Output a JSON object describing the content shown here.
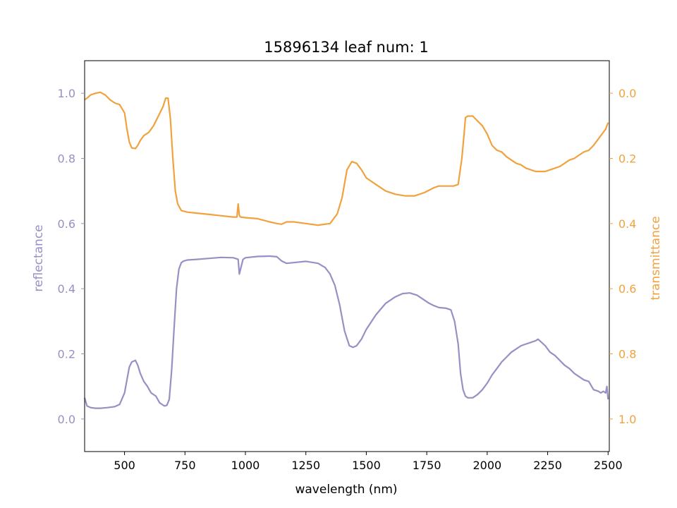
{
  "chart_data": {
    "type": "line",
    "title": "15896134 leaf num: 1",
    "xlabel": "wavelength (nm)",
    "ylabel_left": "reflectance",
    "ylabel_right": "transmittance",
    "xlim": [
      335,
      2505
    ],
    "ylim_left": [
      -0.1,
      1.1
    ],
    "ylim_right": [
      1.1,
      -0.1
    ],
    "right_axis_inverted": true,
    "grid": false,
    "x_ticks": [
      500,
      750,
      1000,
      1250,
      1500,
      1750,
      2000,
      2250,
      2500
    ],
    "y_left_ticks": [
      0.0,
      0.2,
      0.4,
      0.6,
      0.8,
      1.0
    ],
    "y_right_ticks": [
      0.0,
      0.2,
      0.4,
      0.6,
      0.8,
      1.0
    ],
    "colors": {
      "reflectance": "#9890c4",
      "transmittance": "#f0a23e"
    },
    "series": [
      {
        "name": "reflectance",
        "axis": "left",
        "x": [
          335,
          345,
          360,
          380,
          400,
          430,
          460,
          480,
          500,
          510,
          520,
          530,
          545,
          555,
          565,
          580,
          595,
          610,
          630,
          645,
          655,
          665,
          675,
          685,
          695,
          705,
          715,
          725,
          735,
          745,
          760,
          800,
          850,
          900,
          950,
          970,
          975,
          980,
          990,
          1000,
          1050,
          1100,
          1130,
          1150,
          1170,
          1200,
          1250,
          1300,
          1330,
          1350,
          1370,
          1390,
          1410,
          1430,
          1445,
          1460,
          1480,
          1500,
          1540,
          1580,
          1620,
          1650,
          1680,
          1710,
          1740,
          1760,
          1780,
          1800,
          1830,
          1850,
          1865,
          1880,
          1890,
          1900,
          1910,
          1920,
          1940,
          1960,
          1980,
          2000,
          2020,
          2040,
          2060,
          2080,
          2100,
          2120,
          2140,
          2160,
          2180,
          2200,
          2210,
          2225,
          2240,
          2260,
          2280,
          2300,
          2320,
          2340,
          2360,
          2380,
          2400,
          2420,
          2440,
          2460,
          2470,
          2480,
          2490,
          2495,
          2500
        ],
        "y": [
          0.065,
          0.04,
          0.035,
          0.033,
          0.033,
          0.035,
          0.038,
          0.045,
          0.08,
          0.12,
          0.16,
          0.175,
          0.18,
          0.165,
          0.14,
          0.115,
          0.1,
          0.08,
          0.07,
          0.05,
          0.045,
          0.04,
          0.042,
          0.06,
          0.15,
          0.28,
          0.4,
          0.46,
          0.48,
          0.485,
          0.488,
          0.49,
          0.493,
          0.496,
          0.495,
          0.49,
          0.445,
          0.46,
          0.49,
          0.495,
          0.499,
          0.5,
          0.498,
          0.485,
          0.478,
          0.48,
          0.484,
          0.478,
          0.465,
          0.445,
          0.41,
          0.35,
          0.27,
          0.225,
          0.22,
          0.225,
          0.245,
          0.275,
          0.32,
          0.355,
          0.375,
          0.385,
          0.387,
          0.38,
          0.365,
          0.355,
          0.348,
          0.342,
          0.34,
          0.335,
          0.3,
          0.23,
          0.14,
          0.09,
          0.07,
          0.065,
          0.065,
          0.075,
          0.09,
          0.11,
          0.135,
          0.155,
          0.175,
          0.19,
          0.205,
          0.215,
          0.225,
          0.23,
          0.235,
          0.24,
          0.245,
          0.235,
          0.225,
          0.205,
          0.195,
          0.18,
          0.165,
          0.155,
          0.14,
          0.13,
          0.12,
          0.115,
          0.09,
          0.085,
          0.08,
          0.085,
          0.08,
          0.1,
          0.06
        ]
      },
      {
        "name": "transmittance",
        "axis": "right",
        "x": [
          335,
          345,
          360,
          380,
          400,
          420,
          440,
          460,
          480,
          500,
          510,
          520,
          530,
          545,
          555,
          565,
          580,
          600,
          620,
          640,
          660,
          670,
          680,
          690,
          700,
          710,
          720,
          735,
          760,
          800,
          850,
          900,
          950,
          965,
          970,
          975,
          980,
          1000,
          1050,
          1100,
          1130,
          1150,
          1170,
          1200,
          1250,
          1300,
          1350,
          1380,
          1400,
          1420,
          1440,
          1460,
          1480,
          1500,
          1540,
          1580,
          1620,
          1660,
          1700,
          1740,
          1780,
          1800,
          1830,
          1860,
          1880,
          1895,
          1905,
          1910,
          1920,
          1940,
          1960,
          1980,
          2000,
          2020,
          2040,
          2060,
          2080,
          2100,
          2120,
          2140,
          2160,
          2180,
          2200,
          2220,
          2240,
          2260,
          2280,
          2300,
          2320,
          2340,
          2360,
          2380,
          2400,
          2420,
          2440,
          2460,
          2480,
          2490,
          2500
        ],
        "y": [
          0.02,
          0.015,
          0.005,
          0.0,
          -0.003,
          0.005,
          0.02,
          0.03,
          0.035,
          0.06,
          0.11,
          0.15,
          0.168,
          0.17,
          0.16,
          0.145,
          0.13,
          0.12,
          0.1,
          0.07,
          0.04,
          0.015,
          0.015,
          0.08,
          0.2,
          0.3,
          0.34,
          0.36,
          0.365,
          0.368,
          0.372,
          0.376,
          0.38,
          0.38,
          0.34,
          0.375,
          0.38,
          0.382,
          0.385,
          0.395,
          0.4,
          0.402,
          0.395,
          0.395,
          0.4,
          0.405,
          0.4,
          0.37,
          0.32,
          0.235,
          0.21,
          0.215,
          0.235,
          0.26,
          0.28,
          0.3,
          0.31,
          0.315,
          0.315,
          0.305,
          0.29,
          0.285,
          0.285,
          0.285,
          0.28,
          0.2,
          0.12,
          0.075,
          0.07,
          0.07,
          0.085,
          0.1,
          0.125,
          0.16,
          0.175,
          0.18,
          0.195,
          0.205,
          0.215,
          0.22,
          0.23,
          0.235,
          0.24,
          0.24,
          0.24,
          0.235,
          0.23,
          0.225,
          0.215,
          0.205,
          0.2,
          0.19,
          0.18,
          0.175,
          0.16,
          0.14,
          0.12,
          0.11,
          0.09
        ]
      }
    ]
  }
}
